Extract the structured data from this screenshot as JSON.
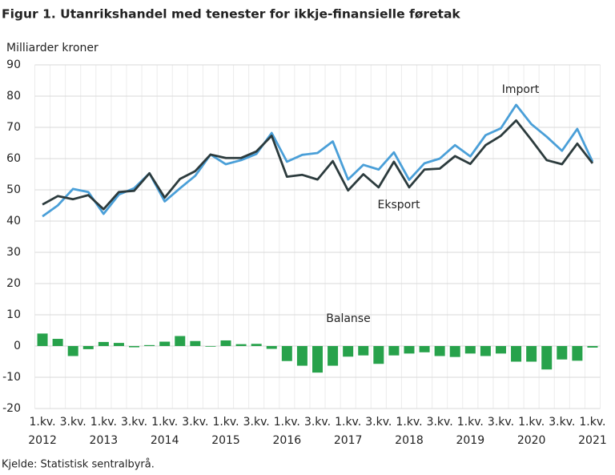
{
  "chart_data": {
    "type": "line",
    "title": "Figur 1. Utanrikshandel med tenester for ikkje-finansielle føretak",
    "y_axis_label": "Milliarder kroner",
    "source": "Kjelde: Statistisk sentralbyrå.",
    "categories": [
      "1.kv.",
      null,
      "3.kv.",
      null,
      "1.kv.",
      null,
      "3.kv.",
      null,
      "1.kv.",
      null,
      "3.kv.",
      null,
      "1.kv.",
      null,
      "3.kv.",
      null,
      "1.kv.",
      null,
      "3.kv.",
      null,
      "1.kv.",
      null,
      "3.kv.",
      null,
      "1.kv.",
      null,
      "3.kv.",
      null,
      "1.kv.",
      null,
      "3.kv.",
      null,
      "1.kv.",
      null,
      "3.kv.",
      null,
      "1.kv."
    ],
    "years": [
      "2012",
      "2013",
      "2014",
      "2015",
      "2016",
      "2017",
      "2018",
      "2019",
      "2020",
      "2021"
    ],
    "ylim": [
      -20,
      90
    ],
    "yticks": [
      -20,
      -10,
      0,
      10,
      20,
      30,
      40,
      50,
      60,
      70,
      80,
      90
    ],
    "grid": true,
    "series": [
      {
        "name": "Import",
        "type": "line",
        "color": "#4a9fd8",
        "values": [
          41.5,
          45,
          50.3,
          49.3,
          42.3,
          48.5,
          50.5,
          55.3,
          46.3,
          50.5,
          54.5,
          61.3,
          58.2,
          59.5,
          61.5,
          68.2,
          59,
          61.2,
          61.8,
          65.5,
          53.3,
          58,
          56.5,
          62,
          53.2,
          58.5,
          60,
          64.3,
          60.7,
          67.5,
          69.7,
          77.2,
          71,
          67,
          62.5,
          69.5,
          59
        ]
      },
      {
        "name": "Eksport",
        "type": "line",
        "color": "#2c3b3d",
        "values": [
          45.3,
          48,
          47,
          48.3,
          43.8,
          49.3,
          49.7,
          55.3,
          47.5,
          53.5,
          56,
          61.3,
          60.2,
          60.2,
          62.3,
          67.3,
          54.2,
          54.8,
          53.3,
          59.2,
          49.8,
          55,
          50.8,
          59,
          50.8,
          56.5,
          56.8,
          60.8,
          58.3,
          64.3,
          67.3,
          72.2,
          66,
          59.5,
          58.2,
          64.8,
          58.5
        ]
      },
      {
        "name": "Balanse",
        "type": "bar",
        "color": "#27a24b",
        "values": [
          4,
          2.3,
          -3.2,
          -1,
          1.3,
          1,
          -0.4,
          0.3,
          1.4,
          3.2,
          1.6,
          -0.2,
          1.8,
          0.6,
          0.7,
          -0.9,
          -4.8,
          -6.3,
          -8.5,
          -6.3,
          -3.4,
          -3,
          -5.7,
          -3,
          -2.4,
          -2,
          -3.2,
          -3.5,
          -2.4,
          -3.2,
          -2.4,
          -5,
          -5,
          -7.5,
          -4.3,
          -4.7,
          -0.5
        ]
      }
    ]
  }
}
